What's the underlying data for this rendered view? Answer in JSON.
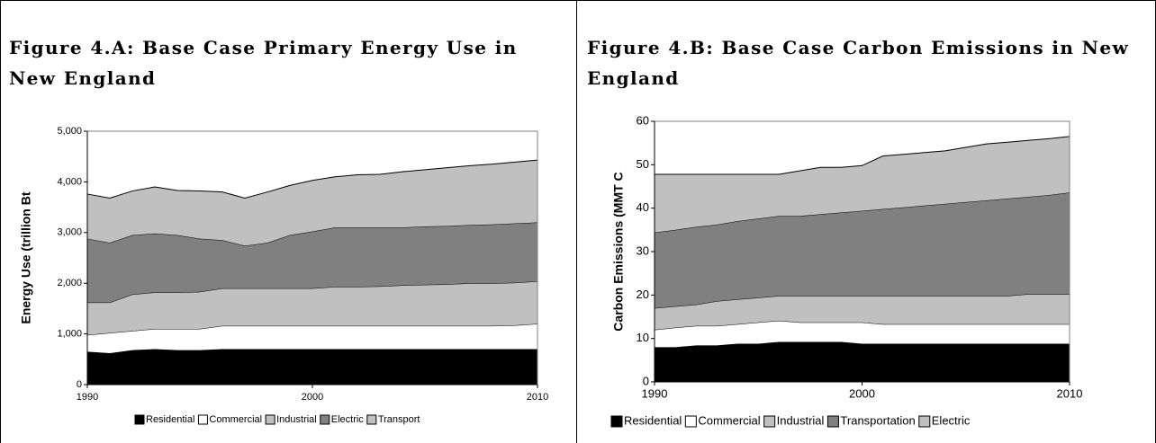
{
  "chart_data": [
    {
      "type": "area",
      "stacked": true,
      "title": "Figure 4.A: Base Case Primary Energy Use in New England",
      "y_label": "Energy Use (trillion Bt",
      "x": [
        1990,
        1991,
        1992,
        1993,
        1994,
        1995,
        1996,
        1997,
        1998,
        1999,
        2000,
        2001,
        2002,
        2003,
        2004,
        2005,
        2006,
        2007,
        2008,
        2009,
        2010
      ],
      "xlim": [
        1990,
        2010
      ],
      "xticks": [
        1990,
        2000,
        2010
      ],
      "ylim": [
        0,
        5000
      ],
      "yticks": [
        0,
        {
          "value": 1000,
          "label": "1,000"
        },
        {
          "value": 2000,
          "label": "2,000"
        },
        {
          "value": 3000,
          "label": "3,000"
        },
        {
          "value": 4000,
          "label": "4,000"
        },
        {
          "value": 5000,
          "label": "5,000"
        }
      ],
      "series": [
        {
          "name": "Residential",
          "color": "#000000",
          "values": [
            650,
            620,
            680,
            700,
            680,
            680,
            700,
            700,
            700,
            700,
            700,
            700,
            700,
            700,
            700,
            700,
            700,
            700,
            700,
            700,
            700
          ]
        },
        {
          "name": "Commercial",
          "color": "#ffffff",
          "values": [
            330,
            400,
            380,
            400,
            420,
            420,
            460,
            460,
            460,
            460,
            460,
            460,
            460,
            460,
            460,
            460,
            460,
            460,
            460,
            470,
            500
          ]
        },
        {
          "name": "Industrial",
          "color": "#c0c0c0",
          "values": [
            640,
            600,
            720,
            720,
            720,
            730,
            740,
            740,
            740,
            740,
            740,
            770,
            770,
            780,
            800,
            810,
            820,
            840,
            840,
            840,
            840
          ]
        },
        {
          "name": "Electric",
          "color": "#808080",
          "values": [
            1260,
            1180,
            1170,
            1160,
            1130,
            1050,
            950,
            840,
            900,
            1050,
            1120,
            1170,
            1170,
            1160,
            1140,
            1150,
            1150,
            1150,
            1160,
            1170,
            1160
          ]
        },
        {
          "name": "Transport",
          "color": "#c0c0c0",
          "values": [
            880,
            880,
            870,
            920,
            880,
            940,
            950,
            940,
            1000,
            980,
            1010,
            1000,
            1040,
            1050,
            1100,
            1120,
            1150,
            1170,
            1190,
            1210,
            1230
          ]
        }
      ]
    },
    {
      "type": "area",
      "stacked": true,
      "title": "Figure 4.B: Base Case Carbon Emissions in New England",
      "y_label": "Carbon Emissions (MMT C",
      "x": [
        1990,
        1991,
        1992,
        1993,
        1994,
        1995,
        1996,
        1997,
        1998,
        1999,
        2000,
        2001,
        2002,
        2003,
        2004,
        2005,
        2006,
        2007,
        2008,
        2009,
        2010
      ],
      "xlim": [
        1990,
        2010
      ],
      "xticks": [
        1990,
        2000,
        2010
      ],
      "ylim": [
        0,
        60
      ],
      "yticks": [
        0,
        10,
        20,
        30,
        40,
        50,
        60
      ],
      "series": [
        {
          "name": "Residential",
          "color": "#000000",
          "values": [
            8,
            8,
            8.4,
            8.4,
            8.8,
            8.8,
            9.2,
            9.2,
            9.2,
            9.2,
            8.8,
            8.8,
            8.8,
            8.8,
            8.8,
            8.8,
            8.8,
            8.8,
            8.8,
            8.8,
            8.8
          ]
        },
        {
          "name": "Commercial",
          "color": "#ffffff",
          "values": [
            4,
            4.5,
            4.5,
            4.5,
            4.5,
            4.9,
            4.9,
            4.5,
            4.5,
            4.5,
            4.9,
            4.5,
            4.5,
            4.5,
            4.5,
            4.5,
            4.5,
            4.5,
            4.5,
            4.5,
            4.5
          ]
        },
        {
          "name": "Industrial",
          "color": "#c0c0c0",
          "values": [
            5,
            4.9,
            4.9,
            5.7,
            5.7,
            5.7,
            5.7,
            6.1,
            6.1,
            6.1,
            6.1,
            6.5,
            6.5,
            6.5,
            6.5,
            6.5,
            6.5,
            6.5,
            6.9,
            6.9,
            6.9
          ]
        },
        {
          "name": "Transportation",
          "color": "#808080",
          "values": [
            17.4,
            17.6,
            17.9,
            17.6,
            18,
            18.2,
            18.4,
            18.4,
            18.8,
            19.2,
            19.6,
            20,
            20.4,
            20.8,
            21.2,
            21.6,
            22,
            22.4,
            22.4,
            22.8,
            23.4
          ]
        },
        {
          "name": "Electric",
          "color": "#c0c0c0",
          "values": [
            13.4,
            12.8,
            12.1,
            11.6,
            10.8,
            10.2,
            9.6,
            10.4,
            10.8,
            10.4,
            10.4,
            12.2,
            12.2,
            12.2,
            12.2,
            12.6,
            13,
            13,
            13,
            13,
            12.9
          ]
        }
      ]
    }
  ]
}
